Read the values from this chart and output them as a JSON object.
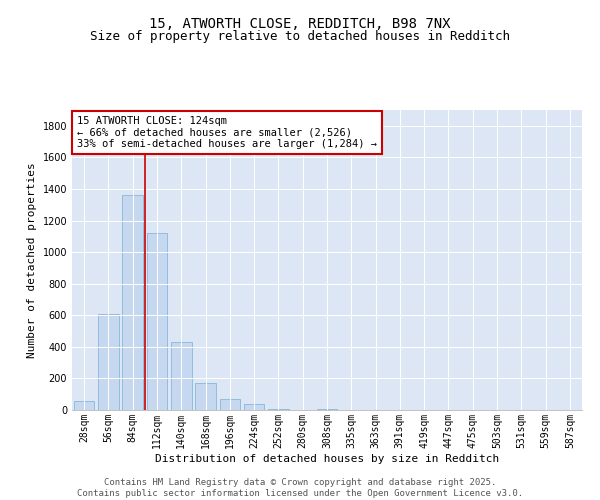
{
  "title1": "15, ATWORTH CLOSE, REDDITCH, B98 7NX",
  "title2": "Size of property relative to detached houses in Redditch",
  "xlabel": "Distribution of detached houses by size in Redditch",
  "ylabel": "Number of detached properties",
  "categories": [
    "28sqm",
    "56sqm",
    "84sqm",
    "112sqm",
    "140sqm",
    "168sqm",
    "196sqm",
    "224sqm",
    "252sqm",
    "280sqm",
    "308sqm",
    "335sqm",
    "363sqm",
    "391sqm",
    "419sqm",
    "447sqm",
    "475sqm",
    "503sqm",
    "531sqm",
    "559sqm",
    "587sqm"
  ],
  "values": [
    55,
    610,
    1360,
    1120,
    430,
    170,
    72,
    38,
    5,
    0,
    5,
    0,
    0,
    0,
    0,
    0,
    0,
    0,
    0,
    0,
    0
  ],
  "bar_color": "#c5d8f0",
  "bar_edge_color": "#7aaed4",
  "vline_color": "#cc0000",
  "annotation_text": "15 ATWORTH CLOSE: 124sqm\n← 66% of detached houses are smaller (2,526)\n33% of semi-detached houses are larger (1,284) →",
  "annotation_box_color": "#ffffff",
  "annotation_box_edge_color": "#cc0000",
  "ylim": [
    0,
    1900
  ],
  "yticks": [
    0,
    200,
    400,
    600,
    800,
    1000,
    1200,
    1400,
    1600,
    1800
  ],
  "background_color": "#dce6f5",
  "footer_text": "Contains HM Land Registry data © Crown copyright and database right 2025.\nContains public sector information licensed under the Open Government Licence v3.0.",
  "title_fontsize": 10,
  "subtitle_fontsize": 9,
  "axis_label_fontsize": 8,
  "tick_fontsize": 7,
  "annotation_fontsize": 7.5,
  "footer_fontsize": 6.5
}
